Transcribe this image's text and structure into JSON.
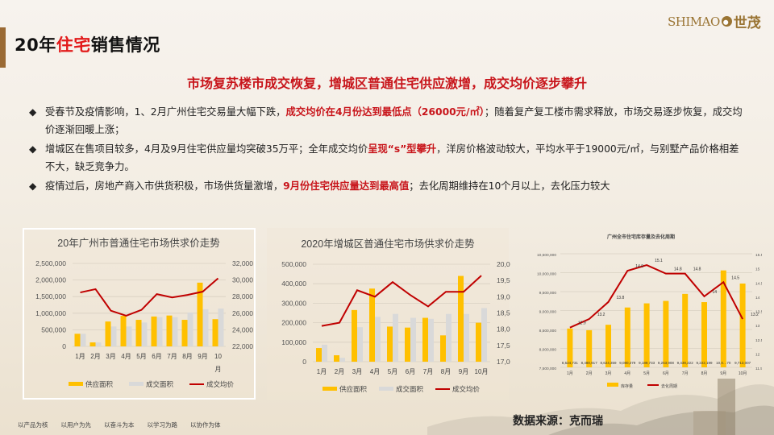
{
  "header": {
    "title_prefix": "20年",
    "title_highlight": "住宅",
    "title_suffix": "销售情况",
    "logo_en": "SHIMAO",
    "logo_cn": "世茂"
  },
  "subtitle": "市场复苏楼市成交恢复，增城区普通住宅供应激增，成交均价逐步攀升",
  "bullets": [
    {
      "parts": [
        {
          "text": "受春节及疫情影响，1、2月广州住宅交易量大幅下跌，",
          "red": false
        },
        {
          "text": "成交均价在4月份达到最低点（26000元/㎡）",
          "red": true
        },
        {
          "text": "；随着复产复工楼市需求释放，市场交易逐步恢复，成交均价逐渐回暖上涨；",
          "red": false
        }
      ]
    },
    {
      "parts": [
        {
          "text": "增城区在售项目较多，4月及9月住宅供应量均突破35万平；全年成交均价",
          "red": false
        },
        {
          "text": "呈现“s”型攀升",
          "red": true
        },
        {
          "text": "，洋房价格波动较大，平均水平于19000元/㎡，与别墅产品价格相差不大，缺乏竞争力。",
          "red": false
        }
      ]
    },
    {
      "parts": [
        {
          "text": "疫情过后，房地产商入市供货积极，市场供货量激增，",
          "red": false
        },
        {
          "text": "9月份住宅供应量达到最高值",
          "red": true
        },
        {
          "text": "；去化周期维持在10个月以上，去化压力较大",
          "red": false
        }
      ]
    }
  ],
  "colors": {
    "supply": "#ffc000",
    "deal": "#d9d9d9",
    "price": "#c00000",
    "accent_red": "#c8151b",
    "title_bar": "#9a6a34"
  },
  "chart_data": [
    {
      "type": "bar",
      "title": "20年广州市普通住宅市场供求价走势",
      "categories": [
        "1月",
        "2月",
        "3月",
        "4月",
        "5月",
        "6月",
        "7月",
        "8月",
        "9月",
        "10月"
      ],
      "series": [
        {
          "name": "供应面积",
          "type": "bar",
          "axis": "left",
          "values": [
            380000,
            120000,
            750000,
            920000,
            800000,
            900000,
            930000,
            800000,
            1920000,
            820000
          ]
        },
        {
          "name": "成交面积",
          "type": "bar",
          "axis": "left",
          "values": [
            380000,
            120000,
            600000,
            600000,
            720000,
            880000,
            880000,
            1020000,
            1120000,
            1140000
          ]
        },
        {
          "name": "成交均价",
          "type": "line",
          "axis": "right",
          "values": [
            28500,
            28900,
            26300,
            25700,
            26400,
            28300,
            27900,
            28200,
            28600,
            30200
          ]
        }
      ],
      "yleft": {
        "ticks": [
          "0",
          "500,000",
          "1,000,000",
          "1,500,000",
          "2,000,000",
          "2,500,000"
        ],
        "range": [
          0,
          2500000
        ]
      },
      "yright": {
        "ticks": [
          "22,000",
          "24,000",
          "26,000",
          "28,000",
          "30,000",
          "32,000"
        ],
        "range": [
          22000,
          32000
        ]
      },
      "legend": [
        "供应面积",
        "成交面积",
        "成交均价"
      ],
      "legend_position": "bottom",
      "grid": true
    },
    {
      "type": "bar",
      "title": "2020年增城区普通住宅市场供求价走势",
      "categories": [
        "1月",
        "2月",
        "3月",
        "4月",
        "5月",
        "6月",
        "7月",
        "8月",
        "9月",
        "10月"
      ],
      "series": [
        {
          "name": "供应面积",
          "type": "bar",
          "axis": "left",
          "values": [
            70000,
            33000,
            265000,
            375000,
            180000,
            175000,
            225000,
            135000,
            440000,
            200000
          ]
        },
        {
          "name": "成交面积",
          "type": "bar",
          "axis": "left",
          "values": [
            87000,
            20000,
            177000,
            230000,
            245000,
            225000,
            220000,
            245000,
            245000,
            275000
          ]
        },
        {
          "name": "成交均价",
          "type": "line",
          "axis": "right",
          "values": [
            18100,
            18200,
            19200,
            19000,
            19450,
            19050,
            18700,
            19150,
            19150,
            19650
          ]
        }
      ],
      "yleft": {
        "ticks": [
          "0",
          "100,000",
          "200,000",
          "300,000",
          "400,000",
          "500,000"
        ],
        "range": [
          0,
          500000
        ]
      },
      "yright": {
        "ticks": [
          "17,000",
          "17,500",
          "18,000",
          "18,500",
          "19,000",
          "19,500",
          "20,000"
        ],
        "range": [
          17000,
          20000
        ]
      },
      "legend": [
        "供应面积",
        "成交面积",
        "成交均价"
      ],
      "legend_position": "bottom",
      "grid": true
    },
    {
      "type": "bar",
      "title": "广州全市住宅库存量及去化周期",
      "categories": [
        "1月",
        "2月",
        "3月",
        "4月",
        "5月",
        "6月",
        "7月",
        "8月",
        "9月",
        "10月"
      ],
      "series": [
        {
          "name": "库存量",
          "type": "bar",
          "axis": "left",
          "values": [
            8524731,
            8480917,
            8624359,
            9080279,
            9189733,
            9253908,
            9439222,
            9222199,
            10060000,
            9713007
          ],
          "labels": [
            "8,524,731",
            "8,480,917",
            "8,624,359",
            "9,080,279",
            "9,189,733",
            "9,253,908",
            "9,439,222",
            "9,222,199",
            "10,0…70",
            "9,713,007"
          ]
        },
        {
          "name": "去化周期",
          "type": "line",
          "axis": "right",
          "values": [
            12.9,
            13.2,
            13.8,
            14.9,
            15.1,
            14.8,
            14.8,
            14,
            14.5,
            13.2
          ],
          "labels": [
            "12.9",
            "13.2",
            "13.8",
            "14.9",
            "15.1",
            "14.8",
            "14.8",
            "14",
            "14.5",
            "13.2"
          ]
        }
      ],
      "yleft": {
        "ticks": [
          "7,500,000",
          "8,000,000",
          "8,500,000",
          "9,000,000",
          "9,500,000",
          "10,000,000",
          "10,500,000"
        ],
        "range": [
          7500000,
          10500000
        ]
      },
      "yright": {
        "ticks": [
          "11.5",
          "12",
          "12.5",
          "13",
          "13.5",
          "14",
          "14.5",
          "15",
          "15.5"
        ],
        "range": [
          11.5,
          15.5
        ]
      },
      "legend": [
        "库存量",
        "去化周期"
      ],
      "legend_position": "bottom",
      "grid": true
    }
  ],
  "footer": {
    "slogans": [
      "以产品为核",
      "以用户为先",
      "以奋斗为本",
      "以学习为路",
      "以协作为体"
    ],
    "source": "数据来源：克而瑞"
  }
}
